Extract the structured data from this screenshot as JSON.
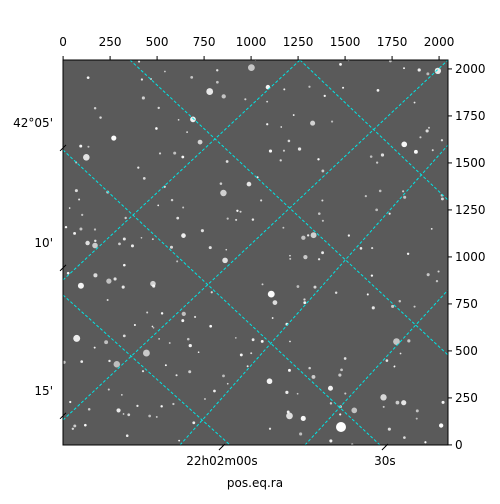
{
  "chart_data": {
    "type": "image",
    "xlabel": "pos.eq.ra",
    "xlim": [
      -0.5,
      2047.5
    ],
    "ylim": [
      -0.5,
      2047.5
    ],
    "xticks": [
      0,
      250,
      500,
      750,
      1000,
      1250,
      1500,
      1750,
      2000
    ],
    "yticks": [
      0,
      250,
      500,
      750,
      1000,
      1250,
      1500,
      1750,
      2000
    ],
    "ra_ticks": [
      {
        "value": 845,
        "label": "22h02m00s"
      },
      {
        "value": 1712,
        "label": "30s"
      }
    ],
    "dec_ticks": [
      {
        "value": 1585,
        "label": "42°05'"
      },
      {
        "value": 947,
        "label": "10'"
      },
      {
        "value": 160,
        "label": "15'"
      }
    ],
    "grid_color": "#00e5e5"
  }
}
